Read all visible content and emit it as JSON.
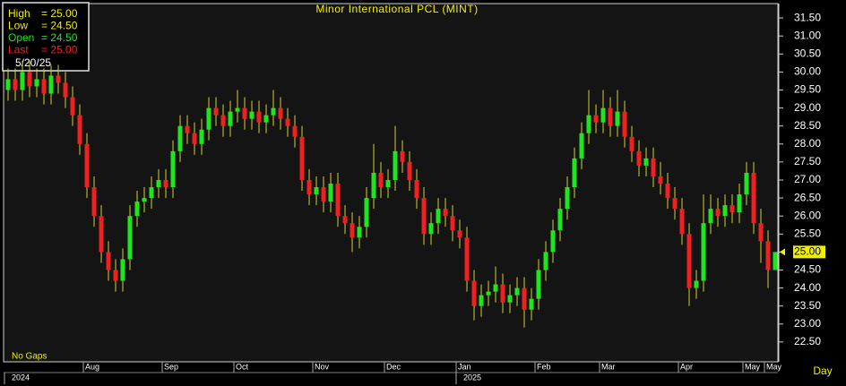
{
  "chart_data": {
    "type": "candlestick",
    "title": "Minor International PCL (MINT)",
    "period": "Day",
    "gaps_note": "No Gaps",
    "up_color": "#1ee61e",
    "down_color": "#f02020",
    "wick_color": "#d2d21e",
    "info_box": [
      {
        "label": "High",
        "text": "= 25.00",
        "color": "#f0f000"
      },
      {
        "label": "Low",
        "text": "= 24.50",
        "color": "#f0f000"
      },
      {
        "label": "Open",
        "text": "= 24.50",
        "color": "#1ee61e"
      },
      {
        "label": "Last",
        "text": "= 25.00",
        "color": "#f02020"
      }
    ],
    "info_date": "5/20/25",
    "last_price": {
      "value": 25,
      "label": "25.00"
    },
    "ylim": [
      21.95,
      31.9
    ],
    "yticks": [
      {
        "value": 22.5,
        "label": "22.50"
      },
      {
        "value": 23,
        "label": "23.00"
      },
      {
        "value": 23.5,
        "label": "23.50"
      },
      {
        "value": 24,
        "label": "24.00"
      },
      {
        "value": 24.5,
        "label": "24.50"
      },
      {
        "value": 25,
        "label": "25.00"
      },
      {
        "value": 25.5,
        "label": "25.50"
      },
      {
        "value": 26,
        "label": "26.00"
      },
      {
        "value": 26.5,
        "label": "26.50"
      },
      {
        "value": 27,
        "label": "27.00"
      },
      {
        "value": 27.5,
        "label": "27.50"
      },
      {
        "value": 28,
        "label": "28.00"
      },
      {
        "value": 28.5,
        "label": "28.50"
      },
      {
        "value": 29,
        "label": "29.00"
      },
      {
        "value": 29.5,
        "label": "29.50"
      },
      {
        "value": 30,
        "label": "30.00"
      },
      {
        "value": 30.5,
        "label": "30.50"
      },
      {
        "value": 31,
        "label": "31.00"
      },
      {
        "value": 31.5,
        "label": "31.50"
      }
    ],
    "categories": [
      null,
      null,
      null,
      null,
      null,
      null,
      null,
      null,
      null,
      null,
      null,
      "Aug",
      null,
      null,
      null,
      null,
      null,
      null,
      null,
      null,
      null,
      null,
      "Sep",
      null,
      null,
      null,
      null,
      null,
      null,
      null,
      null,
      null,
      "Oct",
      null,
      null,
      null,
      null,
      null,
      null,
      null,
      null,
      null,
      null,
      "Nov",
      null,
      null,
      null,
      null,
      null,
      null,
      null,
      null,
      null,
      "Dec",
      null,
      null,
      null,
      null,
      null,
      null,
      null,
      null,
      null,
      "Jan",
      null,
      null,
      null,
      null,
      null,
      null,
      null,
      null,
      null,
      null,
      "Feb",
      null,
      null,
      null,
      null,
      null,
      null,
      null,
      null,
      "Mar",
      null,
      null,
      null,
      null,
      null,
      null,
      null,
      null,
      null,
      null,
      "Apr",
      null,
      null,
      null,
      null,
      null,
      null,
      null,
      null,
      "May",
      null,
      null,
      "May",
      null
    ],
    "years": [
      "2024",
      null,
      null,
      null,
      null,
      null,
      null,
      null,
      null,
      null,
      null,
      null,
      null,
      null,
      null,
      null,
      null,
      null,
      null,
      null,
      null,
      null,
      null,
      null,
      null,
      null,
      null,
      null,
      null,
      null,
      null,
      null,
      null,
      null,
      null,
      null,
      null,
      null,
      null,
      null,
      null,
      null,
      null,
      null,
      null,
      null,
      null,
      null,
      null,
      null,
      null,
      null,
      null,
      null,
      null,
      null,
      null,
      null,
      null,
      null,
      null,
      null,
      null,
      "2025",
      null,
      null,
      null,
      null,
      null,
      null,
      null,
      null,
      null,
      null,
      null,
      null,
      null,
      null,
      null,
      null,
      null,
      null,
      null,
      null,
      null,
      null,
      null,
      null,
      null,
      null,
      null,
      null,
      null,
      null,
      null,
      null,
      null,
      null,
      null,
      null,
      null,
      null,
      null,
      null,
      null,
      null,
      null,
      null
    ],
    "open": [
      29.5,
      29.8,
      29.5,
      30.0,
      29.6,
      29.8,
      29.4,
      29.9,
      29.7,
      29.3,
      28.8,
      28.0,
      26.8,
      26.0,
      25.0,
      24.5,
      24.2,
      24.8,
      26.0,
      26.4,
      26.5,
      26.8,
      27.0,
      26.8,
      27.8,
      28.5,
      28.3,
      28.0,
      28.4,
      29.0,
      28.8,
      28.5,
      28.9,
      29.0,
      28.7,
      28.9,
      28.6,
      28.8,
      29.0,
      28.7,
      28.5,
      28.2,
      27.0,
      26.6,
      26.8,
      26.4,
      26.9,
      26.0,
      25.8,
      25.4,
      25.7,
      26.5,
      27.2,
      26.8,
      27.0,
      27.8,
      27.5,
      27.0,
      26.5,
      25.5,
      25.8,
      26.2,
      26.0,
      25.6,
      25.4,
      24.2,
      23.5,
      23.8,
      23.9,
      24.1,
      23.6,
      23.8,
      24.0,
      23.4,
      23.7,
      24.5,
      25.0,
      25.6,
      26.2,
      26.8,
      27.6,
      28.3,
      28.8,
      28.6,
      29.0,
      28.5,
      28.9,
      28.2,
      27.8,
      27.4,
      27.6,
      27.1,
      26.9,
      26.5,
      26.2,
      25.5,
      24.0,
      24.2,
      25.8,
      26.2,
      26.0,
      26.3,
      26.1,
      26.6,
      27.2,
      25.8,
      25.3,
      24.5
    ],
    "high": [
      30.1,
      30.1,
      30.3,
      30.3,
      30.1,
      30.1,
      30.2,
      30.2,
      30.0,
      29.6,
      29.1,
      28.3,
      27.1,
      26.3,
      25.3,
      24.8,
      25.1,
      26.3,
      26.7,
      26.8,
      27.1,
      27.3,
      27.3,
      28.1,
      28.8,
      28.8,
      28.6,
      28.7,
      29.3,
      29.3,
      29.1,
      29.2,
      29.5,
      29.3,
      29.2,
      29.2,
      29.1,
      29.5,
      29.3,
      29.0,
      28.8,
      28.5,
      27.3,
      27.1,
      27.1,
      27.2,
      27.2,
      26.3,
      26.1,
      26.0,
      26.8,
      28.0,
      27.5,
      27.3,
      28.5,
      28.1,
      27.8,
      27.3,
      26.8,
      26.1,
      26.5,
      26.5,
      26.3,
      25.9,
      25.7,
      24.5,
      24.1,
      24.2,
      24.6,
      24.4,
      24.1,
      24.3,
      24.3,
      24.0,
      24.8,
      25.3,
      25.9,
      26.5,
      27.1,
      27.9,
      28.6,
      29.5,
      29.1,
      29.5,
      29.3,
      29.5,
      29.2,
      28.5,
      28.1,
      27.9,
      27.9,
      27.5,
      27.2,
      26.8,
      26.5,
      25.8,
      24.5,
      26.6,
      26.6,
      26.5,
      26.6,
      26.6,
      26.9,
      27.5,
      27.5,
      26.2,
      25.6,
      25.0
    ],
    "low": [
      29.2,
      29.2,
      29.2,
      29.3,
      29.3,
      29.1,
      29.1,
      29.4,
      29.0,
      28.5,
      27.7,
      26.5,
      25.7,
      24.7,
      24.2,
      23.9,
      23.9,
      24.5,
      25.7,
      26.1,
      26.2,
      26.5,
      26.5,
      26.5,
      27.5,
      28.0,
      27.7,
      27.7,
      28.1,
      28.5,
      28.2,
      28.2,
      28.6,
      28.4,
      28.4,
      28.3,
      28.3,
      28.5,
      28.4,
      28.2,
      27.9,
      26.7,
      26.3,
      26.3,
      26.1,
      26.1,
      25.7,
      25.5,
      25.0,
      25.1,
      25.4,
      26.2,
      26.5,
      26.5,
      26.7,
      27.2,
      26.7,
      26.2,
      25.2,
      25.2,
      25.5,
      25.7,
      25.3,
      25.1,
      23.9,
      23.1,
      23.2,
      23.5,
      23.6,
      23.3,
      23.3,
      23.5,
      22.9,
      23.1,
      23.4,
      24.2,
      24.7,
      25.3,
      25.9,
      26.5,
      27.3,
      28.0,
      28.3,
      28.3,
      28.2,
      28.2,
      27.9,
      27.5,
      27.1,
      27.1,
      26.8,
      26.6,
      26.2,
      25.9,
      25.2,
      23.5,
      23.7,
      23.9,
      25.5,
      25.7,
      25.7,
      25.8,
      25.8,
      26.3,
      25.5,
      24.7,
      24.0,
      24.5
    ],
    "close": [
      29.8,
      29.5,
      30.0,
      29.6,
      29.8,
      29.4,
      29.9,
      29.7,
      29.3,
      28.8,
      28.0,
      26.8,
      26.0,
      25.0,
      24.5,
      24.2,
      24.8,
      26.0,
      26.4,
      26.5,
      26.8,
      27.0,
      26.8,
      27.8,
      28.5,
      28.3,
      28.0,
      28.4,
      29.0,
      28.8,
      28.5,
      28.9,
      29.0,
      28.7,
      28.9,
      28.6,
      28.8,
      29.0,
      28.7,
      28.5,
      28.2,
      27.0,
      26.6,
      26.8,
      26.4,
      26.9,
      26.0,
      25.8,
      25.4,
      25.7,
      26.5,
      27.2,
      26.8,
      27.0,
      27.8,
      27.5,
      27.0,
      26.5,
      25.5,
      25.8,
      26.2,
      26.0,
      25.6,
      25.4,
      24.2,
      23.5,
      23.8,
      23.9,
      24.1,
      23.6,
      23.8,
      24.0,
      23.4,
      23.7,
      24.5,
      25.0,
      25.6,
      26.2,
      26.8,
      27.6,
      28.3,
      28.8,
      28.6,
      29.0,
      28.5,
      28.9,
      28.2,
      27.8,
      27.4,
      27.6,
      27.1,
      26.9,
      26.5,
      26.2,
      25.5,
      24.0,
      24.2,
      25.8,
      26.2,
      26.0,
      26.3,
      26.1,
      26.6,
      27.2,
      25.8,
      25.3,
      24.5,
      25.0
    ]
  }
}
